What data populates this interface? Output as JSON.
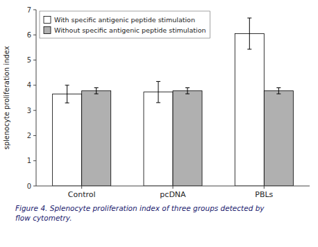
{
  "chart_data": {
    "type": "bar",
    "categories": [
      "Control",
      "pcDNA",
      "PBLs"
    ],
    "series": [
      {
        "name": "With specific antigenic peptide stimulation",
        "color": "#ffffff",
        "values": [
          3.65,
          3.73,
          6.05
        ],
        "errors": [
          0.35,
          0.42,
          0.62
        ]
      },
      {
        "name": "Without specific antigenic peptide stimulation",
        "color": "#b0b0b0",
        "values": [
          3.78,
          3.78,
          3.78
        ],
        "errors": [
          0.12,
          0.12,
          0.12
        ]
      }
    ],
    "y_label": "splenocyte proliferation index",
    "ylim": [
      0,
      7
    ],
    "yticks": [
      0,
      1,
      2,
      3,
      4,
      5,
      6,
      7
    ],
    "legend": "upper left",
    "grid": false,
    "annotations": [
      {
        "text": "Figure 4. Splenocyte proliferation index of three groups detected by\nflow cytometry.",
        "color": "#1a1a6e"
      }
    ]
  }
}
